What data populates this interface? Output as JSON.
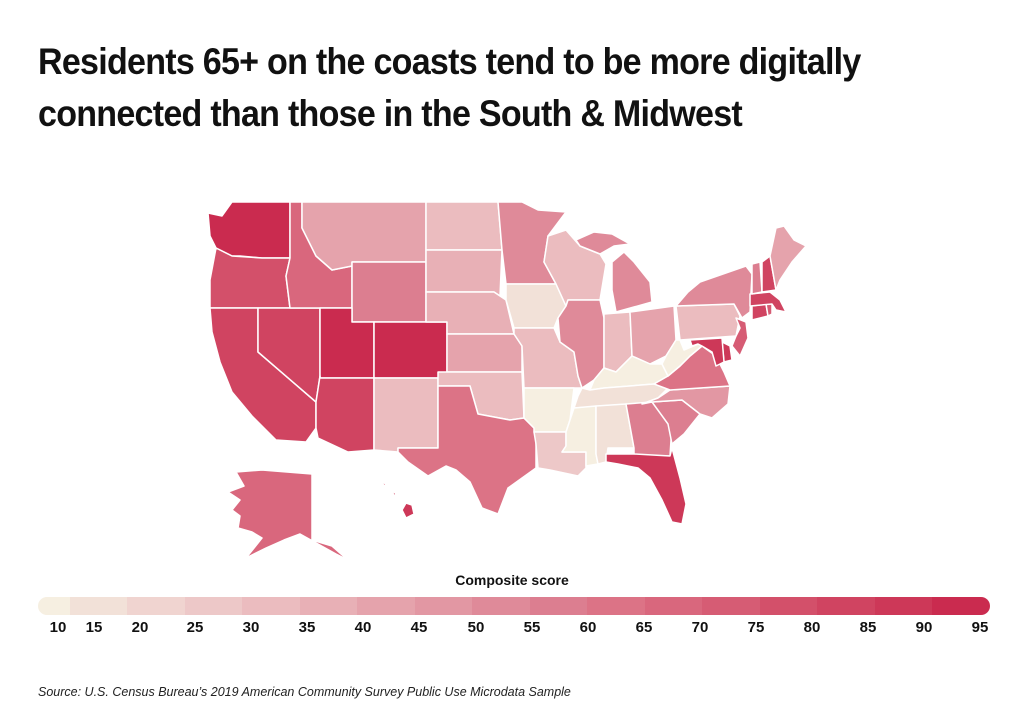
{
  "title": "Residents 65+ on the coasts tend to be more digitally connected than those in the South & Midwest",
  "legend": {
    "title": "Composite score",
    "ticks": [
      "10",
      "15",
      "20",
      "25",
      "30",
      "35",
      "40",
      "45",
      "50",
      "55",
      "60",
      "65",
      "70",
      "75",
      "80",
      "85",
      "90",
      "95"
    ],
    "colors": [
      "#f6efe1",
      "#f2e1d8",
      "#f0d4d0",
      "#edc8c8",
      "#ebbcbf",
      "#e8b0b6",
      "#e5a3ac",
      "#e297a3",
      "#df8a99",
      "#dc7e90",
      "#dc7386",
      "#d9677d",
      "#d65c74",
      "#d3506a",
      "#d04461",
      "#cd3858",
      "#ca2b4f"
    ]
  },
  "source": "Source:  U.S. Census Bureau’s 2019 American Community Survey Public Use Microdata Sample",
  "states": {
    "WA": {
      "name": "Washington",
      "score": 92
    },
    "OR": {
      "name": "Oregon",
      "score": 78
    },
    "CA": {
      "name": "California",
      "score": 80
    },
    "NV": {
      "name": "Nevada",
      "score": 80
    },
    "ID": {
      "name": "Idaho",
      "score": 68
    },
    "MT": {
      "name": "Montana",
      "score": 42
    },
    "WY": {
      "name": "Wyoming",
      "score": 57
    },
    "UT": {
      "name": "Utah",
      "score": 92
    },
    "CO": {
      "name": "Colorado",
      "score": 92
    },
    "AZ": {
      "name": "Arizona",
      "score": 80
    },
    "NM": {
      "name": "New Mexico",
      "score": 33
    },
    "ND": {
      "name": "North Dakota",
      "score": 32
    },
    "SD": {
      "name": "South Dakota",
      "score": 36
    },
    "NE": {
      "name": "Nebraska",
      "score": 36
    },
    "KS": {
      "name": "Kansas",
      "score": 44
    },
    "OK": {
      "name": "Oklahoma",
      "score": 33
    },
    "TX": {
      "name": "Texas",
      "score": 62
    },
    "MN": {
      "name": "Minnesota",
      "score": 52
    },
    "IA": {
      "name": "Iowa",
      "score": 18
    },
    "MO": {
      "name": "Missouri",
      "score": 32
    },
    "AR": {
      "name": "Arkansas",
      "score": 13
    },
    "LA": {
      "name": "Louisiana",
      "score": 27
    },
    "WI": {
      "name": "Wisconsin",
      "score": 33
    },
    "IL": {
      "name": "Illinois",
      "score": 52
    },
    "MI": {
      "name": "Michigan",
      "score": 52
    },
    "IN": {
      "name": "Indiana",
      "score": 32
    },
    "OH": {
      "name": "Ohio",
      "score": 42
    },
    "KY": {
      "name": "Kentucky",
      "score": 13
    },
    "TN": {
      "name": "Tennessee",
      "score": 18
    },
    "MS": {
      "name": "Mississippi",
      "score": 13
    },
    "AL": {
      "name": "Alabama",
      "score": 18
    },
    "GA": {
      "name": "Georgia",
      "score": 57
    },
    "FL": {
      "name": "Florida",
      "score": 85
    },
    "SC": {
      "name": "South Carolina",
      "score": 57
    },
    "NC": {
      "name": "North Carolina",
      "score": 48
    },
    "VA": {
      "name": "Virginia",
      "score": 62
    },
    "WV": {
      "name": "West Virginia",
      "score": 13
    },
    "PA": {
      "name": "Pennsylvania",
      "score": 32
    },
    "NY": {
      "name": "New York",
      "score": 50
    },
    "NJ": {
      "name": "New Jersey",
      "score": 72
    },
    "DE": {
      "name": "Delaware",
      "score": 85
    },
    "MD": {
      "name": "Maryland",
      "score": 88
    },
    "CT": {
      "name": "Connecticut",
      "score": 80
    },
    "RI": {
      "name": "Rhode Island",
      "score": 70
    },
    "MA": {
      "name": "Massachusetts",
      "score": 82
    },
    "VT": {
      "name": "Vermont",
      "score": 56
    },
    "NH": {
      "name": "New Hampshire",
      "score": 82
    },
    "ME": {
      "name": "Maine",
      "score": 42
    },
    "AK": {
      "name": "Alaska",
      "score": 65
    },
    "HI": {
      "name": "Hawaii",
      "score": 88
    }
  }
}
